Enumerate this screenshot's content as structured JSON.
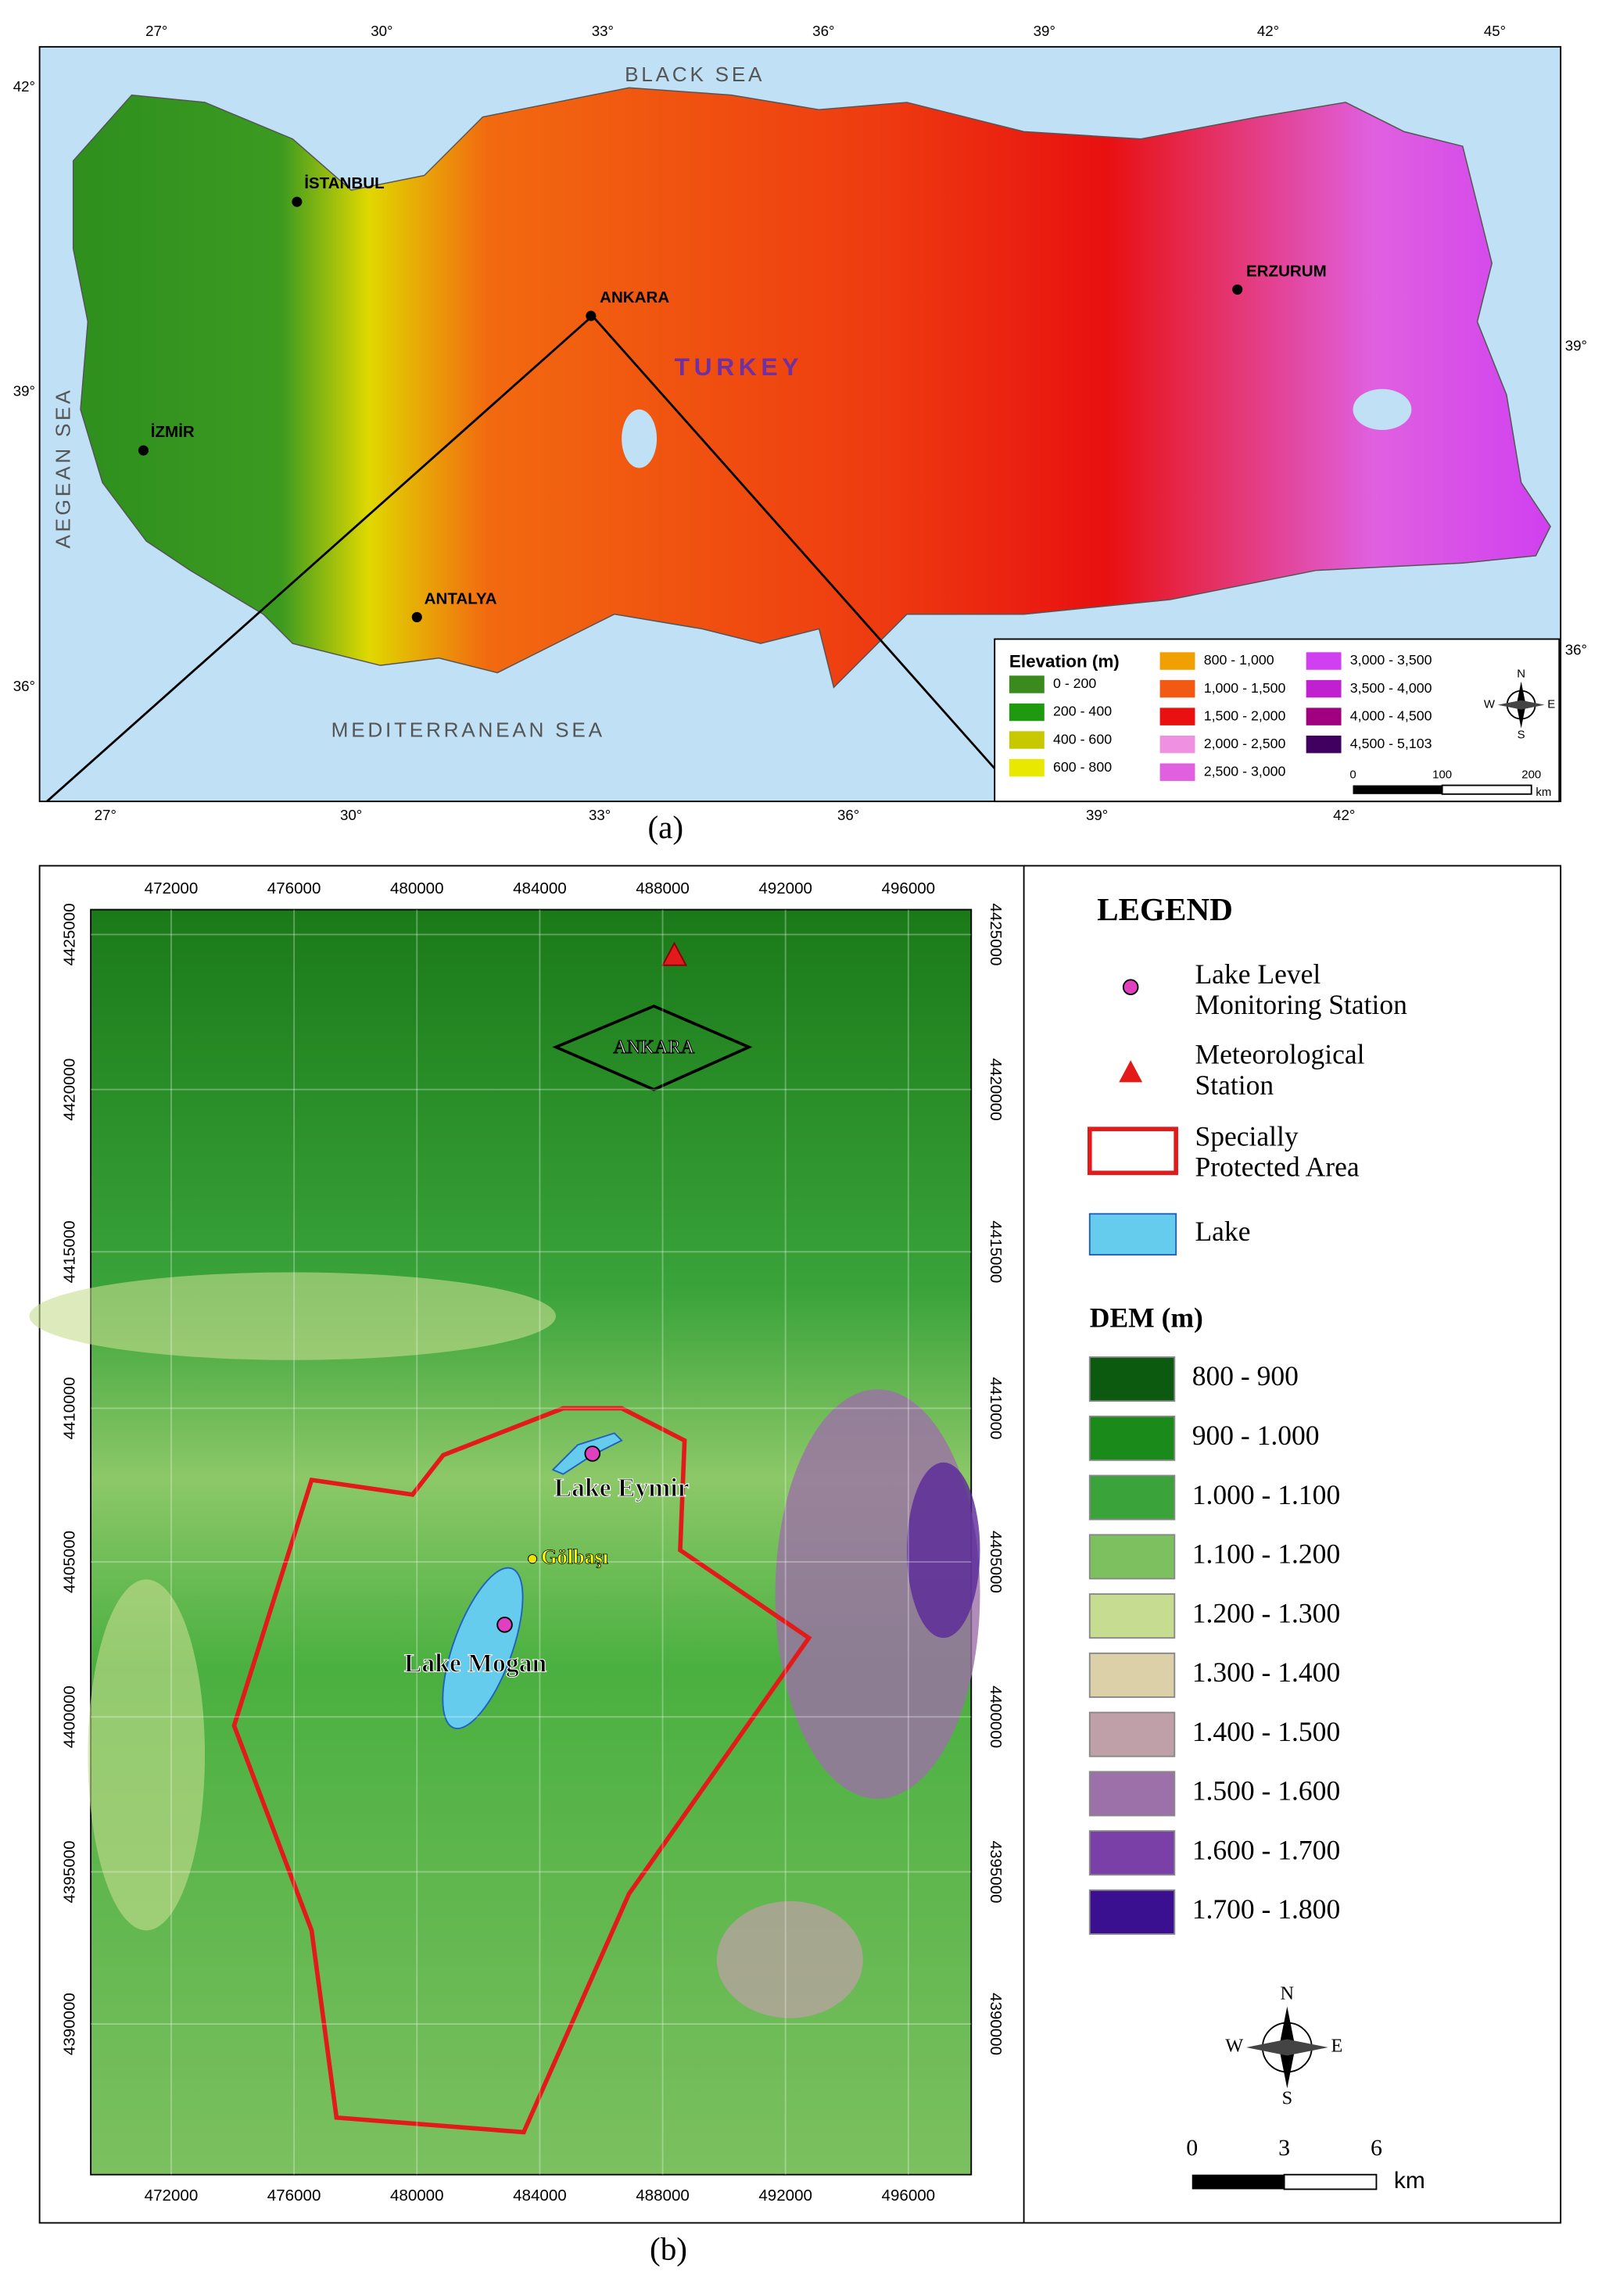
{
  "panel_a": {
    "caption": "(a)",
    "seas": [
      "BLACK SEA",
      "MEDITERRANEAN SEA",
      "AEGEAN SEA"
    ],
    "country": "TURKEY",
    "cities": [
      "İSTANBUL",
      "ANKARA",
      "İZMİR",
      "ANTALYA",
      "ERZURUM"
    ],
    "lon_ticks_top": [
      "27°",
      "30°",
      "33°",
      "36°",
      "39°",
      "42°",
      "45°"
    ],
    "lon_ticks_bottom": [
      "27°",
      "30°",
      "33°",
      "36°",
      "39°",
      "42°"
    ],
    "lat_ticks_left": [
      "42°",
      "39°",
      "36°"
    ],
    "lat_ticks_right": [
      "39°",
      "36°"
    ],
    "legend": {
      "title": "Elevation (m)",
      "classes": [
        {
          "label": "0 - 200",
          "color": "#3a8a1e"
        },
        {
          "label": "200 - 400",
          "color": "#1f9a10"
        },
        {
          "label": "400 - 600",
          "color": "#c8c800"
        },
        {
          "label": "600 - 800",
          "color": "#e8e800"
        },
        {
          "label": "800 - 1,000",
          "color": "#f0a000"
        },
        {
          "label": "1,000 - 1,500",
          "color": "#f25a14"
        },
        {
          "label": "1,500 - 2,000",
          "color": "#e81010"
        },
        {
          "label": "2,000 - 2,500",
          "color": "#f090e0"
        },
        {
          "label": "2,500 - 3,000",
          "color": "#e060e0"
        },
        {
          "label": "3,000 - 3,500",
          "color": "#d040f0"
        },
        {
          "label": "3,500 - 4,000",
          "color": "#c020d0"
        },
        {
          "label": "4,000 - 4,500",
          "color": "#a00080"
        },
        {
          "label": "4,500 - 5,103",
          "color": "#400060"
        }
      ]
    },
    "compass": [
      "N",
      "E",
      "S",
      "W"
    ],
    "scale": [
      "0",
      "100",
      "200",
      "km"
    ]
  },
  "panel_b": {
    "caption": "(b)",
    "x_ticks": [
      "472000",
      "476000",
      "480000",
      "484000",
      "488000",
      "492000",
      "496000"
    ],
    "y_ticks": [
      "4425000",
      "4420000",
      "4415000",
      "4410000",
      "4405000",
      "4400000",
      "4395000",
      "4390000"
    ],
    "labels": [
      "ANKARA",
      "Lake Eymir",
      "Gölbaşı",
      "Lake Mogan"
    ],
    "legend": {
      "title": "LEGEND",
      "items": [
        [
          "Lake Level",
          "Monitoring Station"
        ],
        [
          "Meteorological",
          "Station"
        ],
        [
          "Specially",
          "Protected Area"
        ],
        [
          "Lake"
        ]
      ],
      "dem_title": "DEM (m)",
      "dem_classes": [
        {
          "label": "800 - 900",
          "color": "#0c5a10"
        },
        {
          "label": "900 - 1.000",
          "color": "#1a8a1a"
        },
        {
          "label": "1.000 - 1.100",
          "color": "#3aa33a"
        },
        {
          "label": "1.100 - 1.200",
          "color": "#7cc060"
        },
        {
          "label": "1.200 - 1.300",
          "color": "#c6dc90"
        },
        {
          "label": "1.300 - 1.400",
          "color": "#dcd0a8"
        },
        {
          "label": "1.400 - 1.500",
          "color": "#c0a0a8"
        },
        {
          "label": "1.500 - 1.600",
          "color": "#9c70a8"
        },
        {
          "label": "1.600 - 1.700",
          "color": "#7a40a8"
        },
        {
          "label": "1.700 - 1.800",
          "color": "#3a1090"
        }
      ]
    },
    "compass": [
      "N",
      "E",
      "S",
      "W"
    ],
    "scale": [
      "0",
      "3",
      "6",
      "km"
    ]
  }
}
